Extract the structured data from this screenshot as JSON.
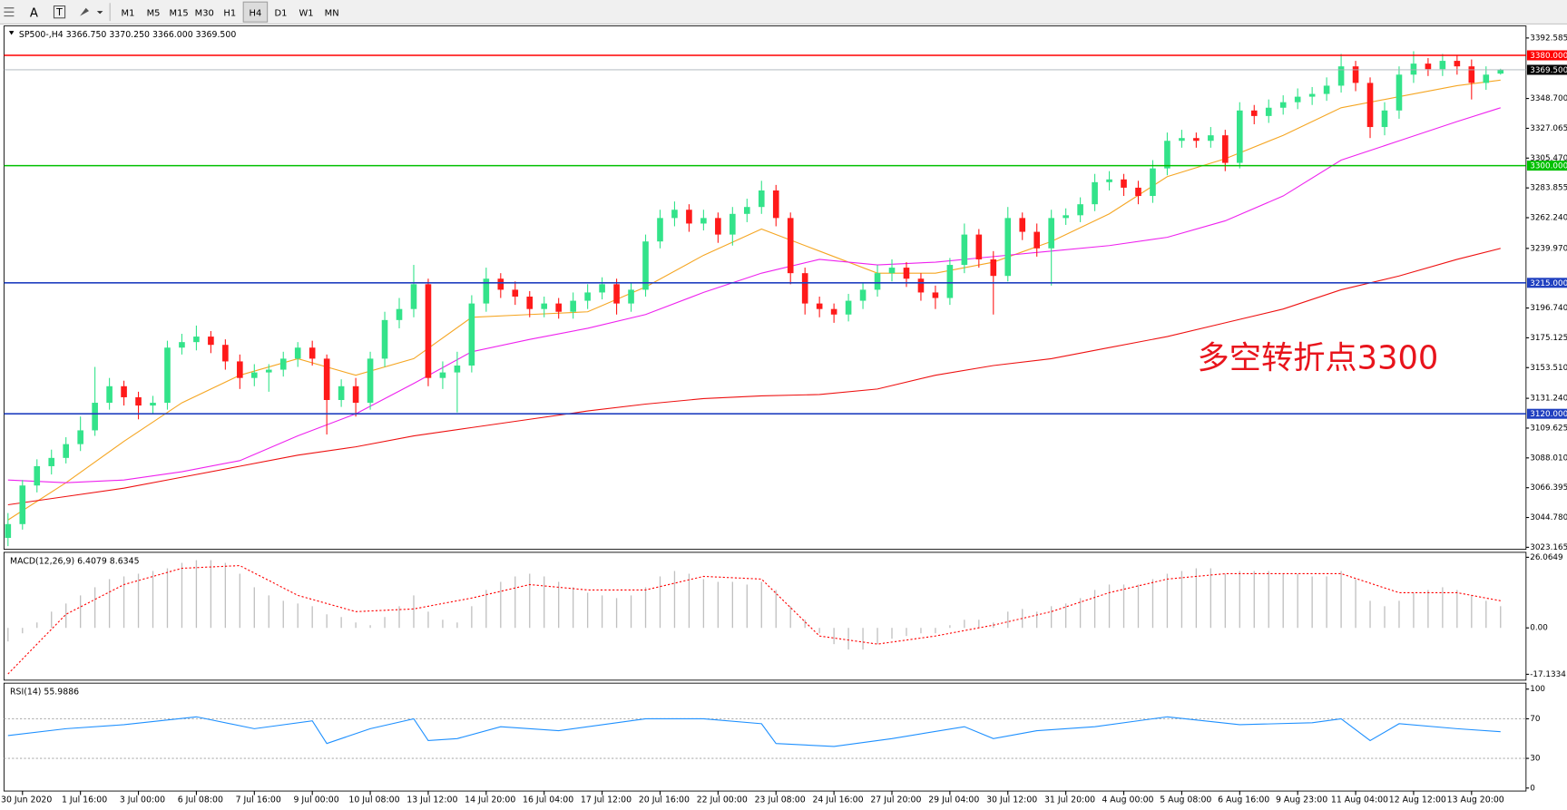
{
  "toolbar": {
    "tools": [
      "A",
      "T"
    ],
    "timeframes": [
      "M1",
      "M5",
      "M15",
      "M30",
      "H1",
      "H4",
      "D1",
      "W1",
      "MN"
    ]
  },
  "chart_data": [
    {
      "type": "candlestick",
      "title": "SP500-,H4  3366.750 3370.250 3366.000 3369.500",
      "annotation": "多空转折点3300",
      "annotation_color": "#e8141c",
      "up_color": "#33e38a",
      "down_color": "#ff1a1a",
      "ylim": [
        3021.7,
        3401.3
      ],
      "yticks": [
        3392.585,
        {
          "value": 3348.7,
          "label": "3348.700"
        },
        3327.065,
        {
          "value": 3305.47,
          "label": "3305.470"
        },
        3283.855,
        {
          "value": 3262.24,
          "label": "3262.240"
        },
        {
          "value": 3239.97,
          "label": "3239.970"
        },
        {
          "value": 3196.74,
          "label": "3196.740"
        },
        3175.125,
        {
          "value": 3153.51,
          "label": "3153.510"
        },
        {
          "value": 3131.24,
          "label": "3131.240"
        },
        3109.625,
        {
          "value": 3088.01,
          "label": "3088.010"
        },
        3066.395,
        {
          "value": 3044.78,
          "label": "3044.780"
        },
        3023.165
      ],
      "categories": [
        null,
        "30 Jun 2020",
        null,
        null,
        null,
        "1 Jul 16:00",
        null,
        null,
        null,
        "3 Jul 00:00",
        null,
        null,
        null,
        "6 Jul 08:00",
        null,
        null,
        null,
        "7 Jul 16:00",
        null,
        null,
        null,
        "9 Jul 00:00",
        null,
        null,
        null,
        "10 Jul 08:00",
        null,
        null,
        null,
        "13 Jul 12:00",
        null,
        null,
        null,
        "14 Jul 20:00",
        null,
        null,
        null,
        "16 Jul 04:00",
        null,
        null,
        null,
        "17 Jul 12:00",
        null,
        null,
        null,
        "20 Jul 16:00",
        null,
        null,
        null,
        "22 Jul 00:00",
        null,
        null,
        null,
        "23 Jul 08:00",
        null,
        null,
        null,
        "24 Jul 16:00",
        null,
        null,
        null,
        "27 Jul 20:00",
        null,
        null,
        null,
        "29 Jul 04:00",
        null,
        null,
        null,
        "30 Jul 12:00",
        null,
        null,
        null,
        "31 Jul 20:00",
        null,
        null,
        null,
        "4 Aug 00:00",
        null,
        null,
        null,
        "5 Aug 08:00",
        null,
        null,
        null,
        "6 Aug 16:00",
        null,
        null,
        null,
        "9 Aug 23:00",
        null,
        null,
        null,
        "11 Aug 04:00",
        null,
        null,
        null,
        "12 Aug 12:00",
        null,
        null,
        null,
        "13 Aug 20:00",
        null,
        null
      ],
      "open": [
        3030,
        3040,
        3068,
        3082,
        3088,
        3098,
        3108,
        3128,
        3140,
        3132,
        3126,
        3128,
        3168,
        3172,
        3176,
        3170,
        3158,
        3146,
        3150,
        3152,
        3160,
        3168,
        3160,
        3130,
        3140,
        3128,
        3160,
        3188,
        3196,
        3214,
        3146,
        3150,
        3155,
        3200,
        3218,
        3210,
        3205,
        3196,
        3200,
        3194,
        3202,
        3208,
        3214,
        3200,
        3210,
        3245,
        3262,
        3268,
        3258,
        3262,
        3250,
        3265,
        3270,
        3282,
        3262,
        3222,
        3200,
        3196,
        3192,
        3202,
        3210,
        3222,
        3226,
        3218,
        3208,
        3204,
        3228,
        3250,
        3232,
        3220,
        3262,
        3252,
        3240,
        3262,
        3264,
        3272,
        3288,
        3290,
        3284,
        3278,
        3298,
        3318,
        3320,
        3318,
        3322,
        3302,
        3340,
        3336,
        3342,
        3346,
        3350,
        3352,
        3358,
        3372,
        3360,
        3328,
        3340,
        3366,
        3374,
        3370,
        3376,
        3372,
        3360,
        3366.75
      ],
      "high": [
        3048,
        3072,
        3087,
        3094,
        3103,
        3118,
        3154,
        3146,
        3144,
        3136,
        3133,
        3173,
        3178,
        3184,
        3180,
        3174,
        3163,
        3156,
        3156,
        3165,
        3172,
        3173,
        3163,
        3145,
        3146,
        3165,
        3194,
        3204,
        3228,
        3218,
        3158,
        3165,
        3206,
        3226,
        3222,
        3216,
        3209,
        3205,
        3204,
        3208,
        3214,
        3219,
        3218,
        3215,
        3250,
        3268,
        3274,
        3272,
        3268,
        3266,
        3270,
        3276,
        3289,
        3286,
        3266,
        3226,
        3205,
        3200,
        3207,
        3215,
        3228,
        3232,
        3230,
        3222,
        3213,
        3233,
        3258,
        3254,
        3238,
        3270,
        3266,
        3258,
        3268,
        3269,
        3277,
        3294,
        3296,
        3294,
        3289,
        3304,
        3324,
        3326,
        3324,
        3328,
        3326,
        3346,
        3344,
        3348,
        3351,
        3356,
        3357,
        3364,
        3381,
        3376,
        3364,
        3346,
        3372,
        3383,
        3378,
        3381,
        3380,
        3377,
        3372,
        3370.25
      ],
      "low": [
        3024,
        3036,
        3063,
        3076,
        3084,
        3093,
        3104,
        3123,
        3126,
        3116,
        3120,
        3123,
        3163,
        3166,
        3164,
        3152,
        3138,
        3140,
        3136,
        3147,
        3154,
        3155,
        3105,
        3125,
        3118,
        3123,
        3154,
        3182,
        3190,
        3140,
        3138,
        3121,
        3150,
        3194,
        3204,
        3199,
        3190,
        3190,
        3189,
        3189,
        3196,
        3203,
        3192,
        3194,
        3205,
        3240,
        3256,
        3252,
        3253,
        3244,
        3242,
        3259,
        3265,
        3256,
        3214,
        3192,
        3190,
        3186,
        3187,
        3196,
        3205,
        3216,
        3212,
        3202,
        3196,
        3199,
        3222,
        3226,
        3192,
        3216,
        3246,
        3234,
        3213,
        3257,
        3259,
        3267,
        3282,
        3278,
        3272,
        3273,
        3293,
        3313,
        3313,
        3313,
        3296,
        3298,
        3330,
        3331,
        3337,
        3341,
        3344,
        3347,
        3353,
        3354,
        3320,
        3322,
        3334,
        3360,
        3365,
        3365,
        3366,
        3348,
        3355,
        3366
      ],
      "close": [
        3040,
        3068,
        3082,
        3088,
        3098,
        3108,
        3128,
        3140,
        3132,
        3126,
        3128,
        3168,
        3172,
        3176,
        3170,
        3158,
        3146,
        3150,
        3152,
        3160,
        3168,
        3160,
        3130,
        3140,
        3128,
        3160,
        3188,
        3196,
        3214,
        3146,
        3150,
        3155,
        3200,
        3218,
        3210,
        3205,
        3196,
        3200,
        3194,
        3202,
        3208,
        3214,
        3200,
        3210,
        3245,
        3262,
        3268,
        3258,
        3262,
        3250,
        3265,
        3270,
        3282,
        3262,
        3222,
        3200,
        3196,
        3192,
        3202,
        3210,
        3222,
        3226,
        3218,
        3208,
        3204,
        3228,
        3250,
        3232,
        3220,
        3262,
        3252,
        3240,
        3262,
        3264,
        3272,
        3288,
        3290,
        3284,
        3278,
        3298,
        3318,
        3320,
        3318,
        3322,
        3302,
        3340,
        3336,
        3342,
        3346,
        3350,
        3352,
        3358,
        3372,
        3360,
        3328,
        3340,
        3366,
        3374,
        3370,
        3376,
        3372,
        3360,
        3366,
        3369.5
      ],
      "lines": [
        {
          "color": "#f5a623",
          "x": [
            0,
            4,
            8,
            12,
            16,
            20,
            24,
            28,
            32,
            36,
            40,
            44,
            48,
            52,
            56,
            60,
            64,
            68,
            72,
            76,
            80,
            84,
            88,
            92,
            96,
            100,
            103
          ],
          "values": [
            3043,
            3070,
            3100,
            3128,
            3148,
            3160,
            3148,
            3160,
            3190,
            3192,
            3194,
            3212,
            3235,
            3254,
            3238,
            3222,
            3222,
            3230,
            3245,
            3265,
            3292,
            3305,
            3322,
            3342,
            3350,
            3358,
            3362
          ]
        },
        {
          "color": "#ee22ee",
          "x": [
            0,
            4,
            8,
            12,
            16,
            20,
            24,
            28,
            32,
            36,
            40,
            44,
            48,
            52,
            56,
            60,
            64,
            68,
            72,
            76,
            80,
            84,
            88,
            92,
            96,
            100,
            103
          ],
          "values": [
            3072,
            3070,
            3072,
            3078,
            3086,
            3104,
            3120,
            3142,
            3165,
            3174,
            3182,
            3192,
            3208,
            3222,
            3232,
            3228,
            3230,
            3234,
            3238,
            3242,
            3248,
            3260,
            3278,
            3304,
            3318,
            3332,
            3342
          ]
        },
        {
          "color": "#ee1111",
          "x": [
            0,
            4,
            8,
            12,
            16,
            20,
            24,
            28,
            32,
            36,
            40,
            44,
            48,
            52,
            56,
            60,
            64,
            68,
            72,
            76,
            80,
            84,
            88,
            92,
            96,
            100,
            103
          ],
          "values": [
            3054,
            3060,
            3066,
            3074,
            3082,
            3090,
            3096,
            3104,
            3110,
            3116,
            3122,
            3127,
            3131,
            3133,
            3134,
            3138,
            3148,
            3155,
            3160,
            3168,
            3176,
            3186,
            3196,
            3210,
            3220,
            3232,
            3240
          ]
        }
      ],
      "hlines": [
        {
          "value": 3380,
          "label": "3380.000",
          "color": "#ff0000",
          "label_bg": "#ff0000"
        },
        {
          "value": 3369.5,
          "label": "3369.500",
          "color": "#a8b0b8",
          "label_bg": "#000000"
        },
        {
          "value": 3300,
          "label": "3300.000",
          "color": "#00c000",
          "label_bg": "#00c000"
        },
        {
          "value": 3215,
          "label": "3215.000",
          "color": "#2040c0",
          "label_bg": "#2040c0"
        },
        {
          "value": 3120,
          "label": "3120.000",
          "color": "#2040c0",
          "label_bg": "#2040c0"
        }
      ]
    },
    {
      "type": "bar",
      "title": "MACD(12,26,9) 6.4079 8.6345",
      "color": "#c0c0c0",
      "ylim": [
        -19.3,
        27.9
      ],
      "yticks": [
        26.0649,
        {
          "value": 0,
          "label": "0.00"
        },
        -17.1334
      ],
      "values": [
        -5,
        -2,
        2,
        6,
        9,
        12,
        15,
        18,
        19,
        20,
        21,
        22,
        24,
        25,
        25,
        24,
        20,
        15,
        12,
        10,
        9,
        8,
        5,
        4,
        2,
        1,
        4,
        8,
        12,
        6,
        3,
        2,
        8,
        14,
        17,
        19,
        20,
        19,
        17,
        15,
        13,
        12,
        11,
        12,
        15,
        19,
        21,
        20,
        18,
        17,
        17,
        16,
        17,
        14,
        8,
        3,
        -2,
        -6,
        -8,
        -8,
        -6,
        -4,
        -3,
        -2,
        -2,
        1,
        3,
        3,
        2,
        6,
        7,
        6,
        8,
        9,
        11,
        14,
        16,
        16,
        16,
        18,
        20,
        21,
        22,
        22,
        20,
        21,
        21,
        21,
        20,
        20,
        19,
        19,
        21,
        18,
        10,
        8,
        10,
        13,
        14,
        15,
        14,
        12,
        10,
        8
      ],
      "signal": {
        "color": "#ff0000",
        "dashed": true,
        "x": [
          0,
          4,
          8,
          12,
          16,
          20,
          24,
          28,
          32,
          36,
          40,
          44,
          48,
          52,
          56,
          60,
          64,
          68,
          72,
          76,
          80,
          84,
          88,
          92,
          96,
          100,
          103
        ],
        "values": [
          -17,
          5,
          16,
          22,
          23,
          12,
          6,
          7,
          11,
          16,
          14,
          14,
          19,
          18,
          -3,
          -6,
          -3,
          1,
          6,
          13,
          18,
          20,
          20,
          20,
          13,
          13,
          10
        ]
      }
    },
    {
      "type": "line",
      "title": "RSI(14) 55.9886",
      "ylim": [
        -3,
        106
      ],
      "yticks": [
        100,
        70,
        30,
        0
      ],
      "levels": [
        70,
        30
      ],
      "series": [
        {
          "color": "#1e90ff",
          "x": [
            0,
            4,
            8,
            13,
            17,
            21,
            22,
            25,
            28,
            29,
            31,
            34,
            38,
            44,
            48,
            52,
            53,
            57,
            61,
            66,
            68,
            71,
            75,
            80,
            85,
            90,
            92,
            94,
            96,
            100,
            103
          ],
          "values": [
            53,
            60,
            64,
            72,
            60,
            68,
            45,
            60,
            70,
            48,
            50,
            62,
            58,
            70,
            70,
            65,
            45,
            42,
            50,
            62,
            50,
            58,
            62,
            72,
            64,
            66,
            70,
            48,
            65,
            60,
            57
          ]
        }
      ]
    }
  ]
}
